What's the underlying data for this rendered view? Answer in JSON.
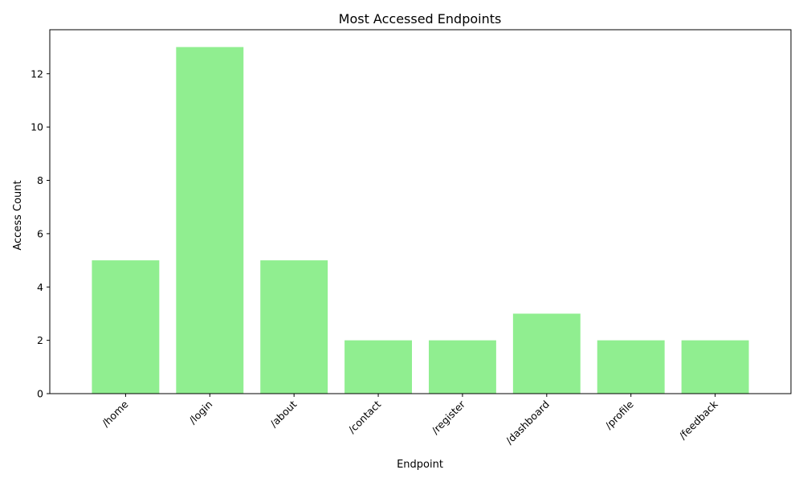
{
  "chart_data": {
    "type": "bar",
    "title": "Most Accessed Endpoints",
    "xlabel": "Endpoint",
    "ylabel": "Access Count",
    "categories": [
      "/home",
      "/login",
      "/about",
      "/contact",
      "/register",
      "/dashboard",
      "/profile",
      "/feedback"
    ],
    "values": [
      5,
      13,
      5,
      2,
      2,
      3,
      2,
      2
    ],
    "ylim": [
      0,
      13.65
    ],
    "yticks": [
      0,
      2,
      4,
      6,
      8,
      10,
      12
    ],
    "grid": false,
    "legend": "none",
    "bar_color": "#90ee90"
  }
}
